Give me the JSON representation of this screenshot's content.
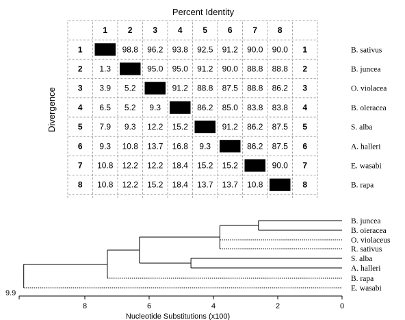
{
  "matrix": {
    "title": "Percent Identity",
    "side_label": "Divergence",
    "column_headers": [
      "1",
      "2",
      "3",
      "4",
      "5",
      "6",
      "7",
      "8"
    ],
    "row_headers": [
      "1",
      "2",
      "3",
      "4",
      "5",
      "6",
      "7",
      "8"
    ],
    "species": [
      "B. sativus",
      "B. juncea",
      "O. violacea",
      "B. oleracea",
      "S. alba",
      "A. halleri",
      "E. wasabi",
      "B. rapa"
    ],
    "rows": [
      [
        "",
        "98.8",
        "96.2",
        "93.8",
        "92.5",
        "91.2",
        "90.0",
        "90.0"
      ],
      [
        "1.3",
        "",
        "95.0",
        "95.0",
        "91.2",
        "90.0",
        "88.8",
        "88.8"
      ],
      [
        "3.9",
        "5.2",
        "",
        "91.2",
        "88.8",
        "87.5",
        "88.8",
        "86.2"
      ],
      [
        "6.5",
        "5.2",
        "9.3",
        "",
        "86.2",
        "85.0",
        "83.8",
        "83.8"
      ],
      [
        "7.9",
        "9.3",
        "12.2",
        "15.2",
        "",
        "91.2",
        "86.2",
        "87.5"
      ],
      [
        "9.3",
        "10.8",
        "13.7",
        "16.8",
        "9.3",
        "",
        "86.2",
        "87.5"
      ],
      [
        "10.8",
        "12.2",
        "12.2",
        "18.4",
        "15.2",
        "15.2",
        "",
        "90.0"
      ],
      [
        "10.8",
        "12.2",
        "15.2",
        "18.4",
        "13.7",
        "13.7",
        "10.8",
        ""
      ]
    ]
  },
  "tree": {
    "leaves": [
      "B. juncea",
      "B. oieracea",
      "O. violaceus",
      "R. sativus",
      "S. alba",
      "A. halleri",
      "B. rapa",
      "E. wasabi"
    ],
    "root_label": "9.9",
    "axis_title": "Nucleotide Substitutions (x100)",
    "axis_ticks": [
      "8",
      "6",
      "4",
      "2",
      "0"
    ]
  },
  "colors": {
    "diagonal_fill": "#000000",
    "line": "#000000",
    "grid": "#9a9a9a"
  }
}
